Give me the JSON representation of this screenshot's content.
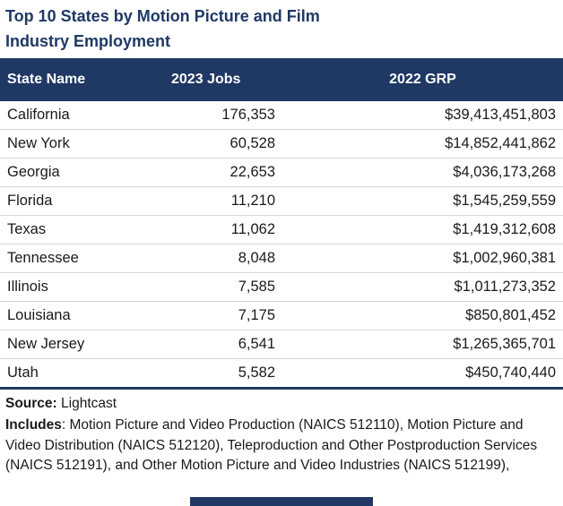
{
  "colors": {
    "navy": "#1f3864",
    "row_border": "#d6d6d6",
    "text": "#1a1a1a"
  },
  "title": {
    "line1": "Top 10 States by Motion Picture and Film",
    "line2": "Industry Employment"
  },
  "table": {
    "headers": [
      "State Name",
      "2023 Jobs",
      "2022 GRP"
    ],
    "rows": [
      {
        "state": "California",
        "jobs": "176,353",
        "grp": "$39,413,451,803"
      },
      {
        "state": "New York",
        "jobs": "60,528",
        "grp": "$14,852,441,862"
      },
      {
        "state": "Georgia",
        "jobs": "22,653",
        "grp": "$4,036,173,268"
      },
      {
        "state": "Florida",
        "jobs": "11,210",
        "grp": "$1,545,259,559"
      },
      {
        "state": "Texas",
        "jobs": "11,062",
        "grp": "$1,419,312,608"
      },
      {
        "state": "Tennessee",
        "jobs": "8,048",
        "grp": "$1,002,960,381"
      },
      {
        "state": "Illinois",
        "jobs": "7,585",
        "grp": "$1,011,273,352"
      },
      {
        "state": "Louisiana",
        "jobs": "7,175",
        "grp": "$850,801,452"
      },
      {
        "state": "New Jersey",
        "jobs": "6,541",
        "grp": "$1,265,365,701"
      },
      {
        "state": "Utah",
        "jobs": "5,582",
        "grp": "$450,740,440"
      }
    ]
  },
  "footer": {
    "source_label": "Source:",
    "source_value": " Lightcast",
    "includes_label": "Includes",
    "includes_text": ": Motion Picture and Video Production (NAICS 512110), Motion Picture and Video Distribution (NAICS 512120), Teleproduction and Other Postproduction Services (NAICS 512191), and Other Motion Picture and Video Industries (NAICS 512199),"
  },
  "chart_data": {
    "type": "table",
    "title": "Top 10 States by Motion Picture and Film Industry Employment",
    "columns": [
      "State Name",
      "2023 Jobs",
      "2022 GRP"
    ],
    "rows": [
      [
        "California",
        176353,
        39413451803
      ],
      [
        "New York",
        60528,
        14852441862
      ],
      [
        "Georgia",
        22653,
        4036173268
      ],
      [
        "Florida",
        11210,
        1545259559
      ],
      [
        "Texas",
        11062,
        1419312608
      ],
      [
        "Tennessee",
        8048,
        1002960381
      ],
      [
        "Illinois",
        7585,
        1011273352
      ],
      [
        "Louisiana",
        7175,
        850801452
      ],
      [
        "New Jersey",
        6541,
        1265365701
      ],
      [
        "Utah",
        5582,
        450740440
      ]
    ],
    "source": "Lightcast",
    "notes": "Includes: Motion Picture and Video Production (NAICS 512110), Motion Picture and Video Distribution (NAICS 512120), Teleproduction and Other Postproduction Services (NAICS 512191), and Other Motion Picture and Video Industries (NAICS 512199)"
  }
}
